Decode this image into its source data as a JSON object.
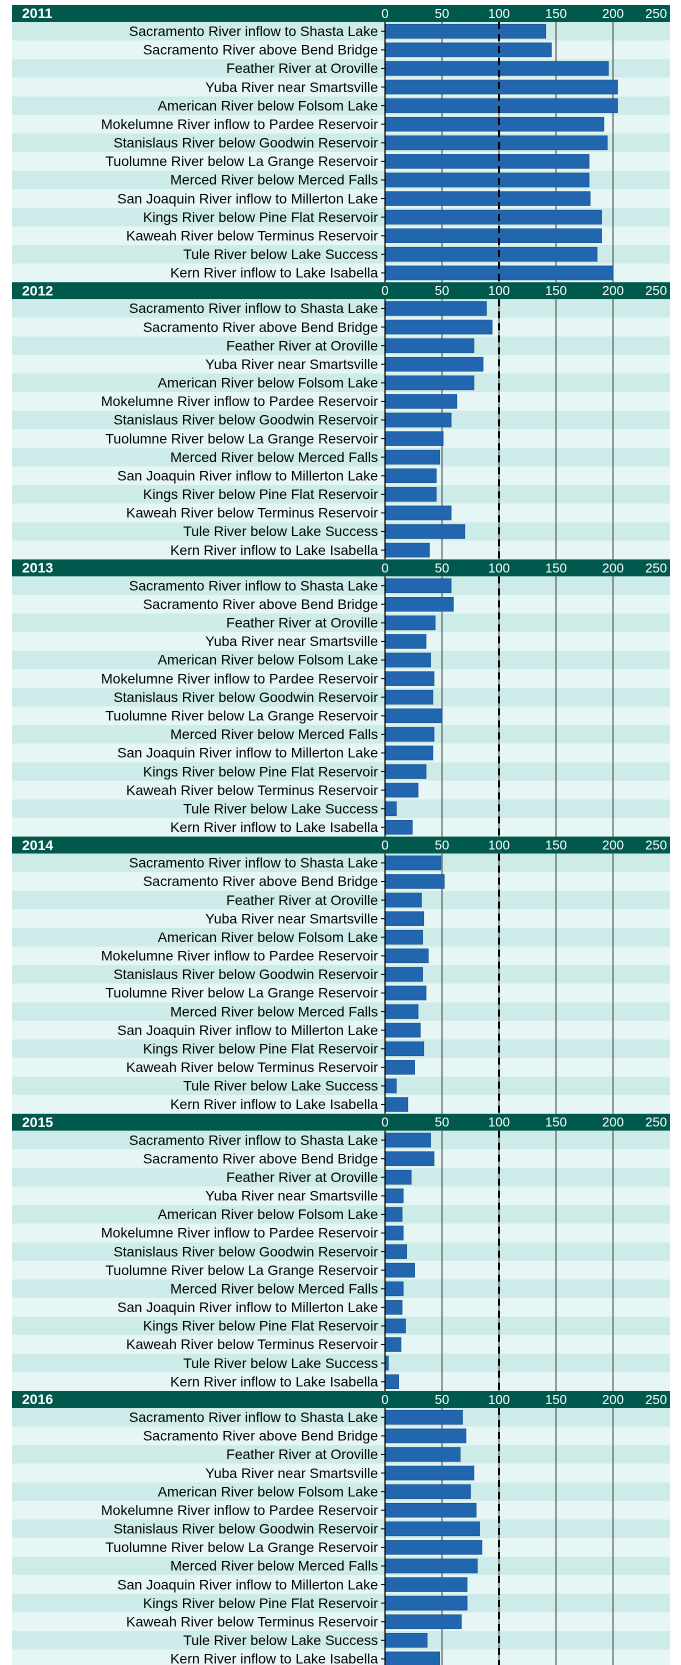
{
  "chart_data": [
    {
      "type": "bar",
      "title": "2011",
      "color": "#2266b0",
      "reference": 100,
      "categories": [
        "Sacramento River inflow to Shasta Lake",
        "Sacramento River above Bend Bridge",
        "Feather River at Oroville",
        "Yuba River near Smartsville",
        "American River below Folsom Lake",
        "Mokelumne River inflow to Pardee Reservoir",
        "Stanislaus River below Goodwin Reservoir",
        "Tuolumne River below La Grange Reservoir",
        "Merced River below Merced Falls",
        "San Joaquin River inflow to Millerton Lake",
        "Kings River below Pine Flat Reservoir",
        "Kaweah River below Terminus Reservoir",
        "Tule River below Lake Success",
        "Kern River inflow to Lake Isabella"
      ],
      "values": [
        141,
        146,
        196,
        204,
        204,
        192,
        195,
        179,
        179,
        180,
        190,
        190,
        186,
        200
      ],
      "xlim": [
        0,
        250
      ],
      "xticks": [
        0,
        50,
        100,
        150,
        200,
        250
      ]
    },
    {
      "type": "bar",
      "title": "2012",
      "color": "#2266b0",
      "reference": 100,
      "categories": [
        "Sacramento River inflow to Shasta Lake",
        "Sacramento River above Bend Bridge",
        "Feather River at Oroville",
        "Yuba River near Smartsville",
        "American River below Folsom Lake",
        "Mokelumne River inflow to Pardee Reservoir",
        "Stanislaus River below Goodwin Reservoir",
        "Tuolumne River below La Grange Reservoir",
        "Merced River below Merced Falls",
        "San Joaquin River inflow to Millerton Lake",
        "Kings River below Pine Flat Reservoir",
        "Kaweah River below Terminus Reservoir",
        "Tule River below Lake Success",
        "Kern River inflow to Lake Isabella"
      ],
      "values": [
        89,
        94,
        78,
        86,
        78,
        63,
        58,
        51,
        48,
        45,
        45,
        58,
        70,
        39
      ],
      "xlim": [
        0,
        250
      ],
      "xticks": [
        0,
        50,
        100,
        150,
        200,
        250
      ]
    },
    {
      "type": "bar",
      "title": "2013",
      "color": "#2266b0",
      "reference": 100,
      "categories": [
        "Sacramento River inflow to Shasta Lake",
        "Sacramento River above Bend Bridge",
        "Feather River at Oroville",
        "Yuba River near Smartsville",
        "American River below Folsom Lake",
        "Mokelumne River inflow to Pardee Reservoir",
        "Stanislaus River below Goodwin Reservoir",
        "Tuolumne River below La Grange Reservoir",
        "Merced River below Merced Falls",
        "San Joaquin River inflow to Millerton Lake",
        "Kings River below Pine Flat Reservoir",
        "Kaweah River below Terminus Reservoir",
        "Tule River below Lake Success",
        "Kern River inflow to Lake Isabella"
      ],
      "values": [
        58,
        60,
        44,
        36,
        40,
        43,
        42,
        50,
        43,
        42,
        36,
        29,
        10,
        24
      ],
      "xlim": [
        0,
        250
      ],
      "xticks": [
        0,
        50,
        100,
        150,
        200,
        250
      ]
    },
    {
      "type": "bar",
      "title": "2014",
      "color": "#2266b0",
      "reference": 100,
      "categories": [
        "Sacramento River inflow to Shasta Lake",
        "Sacramento River above Bend Bridge",
        "Feather River at Oroville",
        "Yuba River near Smartsville",
        "American River below Folsom Lake",
        "Mokelumne River inflow to Pardee Reservoir",
        "Stanislaus River below Goodwin Reservoir",
        "Tuolumne River below La Grange Reservoir",
        "Merced River below Merced Falls",
        "San Joaquin River inflow to Millerton Lake",
        "Kings River below Pine Flat Reservoir",
        "Kaweah River below Terminus Reservoir",
        "Tule River below Lake Success",
        "Kern River inflow to Lake Isabella"
      ],
      "values": [
        49,
        52,
        32,
        34,
        33,
        38,
        33,
        36,
        29,
        31,
        34,
        26,
        10,
        20
      ],
      "xlim": [
        0,
        250
      ],
      "xticks": [
        0,
        50,
        100,
        150,
        200,
        250
      ]
    },
    {
      "type": "bar",
      "title": "2015",
      "color": "#2266b0",
      "reference": 100,
      "categories": [
        "Sacramento River inflow to Shasta Lake",
        "Sacramento River above Bend Bridge",
        "Feather River at Oroville",
        "Yuba River near Smartsville",
        "American River below Folsom Lake",
        "Mokelumne River inflow to Pardee Reservoir",
        "Stanislaus River below Goodwin Reservoir",
        "Tuolumne River below La Grange Reservoir",
        "Merced River below Merced Falls",
        "San Joaquin River inflow to Millerton Lake",
        "Kings River below Pine Flat Reservoir",
        "Kaweah River below Terminus Reservoir",
        "Tule River below Lake Success",
        "Kern River inflow to Lake Isabella"
      ],
      "values": [
        40,
        43,
        23,
        16,
        15,
        16,
        19,
        26,
        16,
        15,
        18,
        14,
        3,
        12
      ],
      "xlim": [
        0,
        250
      ],
      "xticks": [
        0,
        50,
        100,
        150,
        200,
        250
      ]
    },
    {
      "type": "bar",
      "title": "2016",
      "color": "#2266b0",
      "reference": 100,
      "categories": [
        "Sacramento River inflow to Shasta Lake",
        "Sacramento River above Bend Bridge",
        "Feather River at Oroville",
        "Yuba River near Smartsville",
        "American River below Folsom Lake",
        "Mokelumne River inflow to Pardee Reservoir",
        "Stanislaus River below Goodwin Reservoir",
        "Tuolumne River below La Grange Reservoir",
        "Merced River below Merced Falls",
        "San Joaquin River inflow to Millerton Lake",
        "Kings River below Pine Flat Reservoir",
        "Kaweah River below Terminus Reservoir",
        "Tule River below Lake Success",
        "Kern River inflow to Lake Isabella"
      ],
      "values": [
        68,
        71,
        66,
        78,
        75,
        80,
        83,
        85,
        81,
        72,
        72,
        67,
        37,
        48
      ],
      "xlim": [
        0,
        250
      ],
      "xticks": [
        0,
        50,
        100,
        150,
        200,
        250
      ]
    }
  ]
}
